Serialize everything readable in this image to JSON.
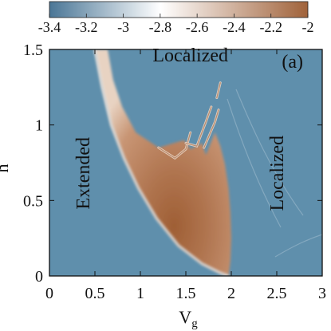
{
  "chart_data": {
    "type": "heatmap",
    "panel_label": "(a)",
    "xlabel": "V",
    "xlabel_subscript": "g",
    "ylabel": "h",
    "xlim": [
      0,
      3
    ],
    "ylim": [
      0,
      1.5
    ],
    "x_ticks": [
      {
        "value": 0,
        "label": "0"
      },
      {
        "value": 0.5,
        "label": "0.5"
      },
      {
        "value": 1,
        "label": "1"
      },
      {
        "value": 1.5,
        "label": "1.5"
      },
      {
        "value": 2,
        "label": "2"
      },
      {
        "value": 2.5,
        "label": "2.5"
      },
      {
        "value": 3,
        "label": "3"
      }
    ],
    "y_ticks": [
      {
        "value": 0,
        "label": "0"
      },
      {
        "value": 0.5,
        "label": "0.5"
      },
      {
        "value": 1,
        "label": "1"
      },
      {
        "value": 1.5,
        "label": "1.5"
      }
    ],
    "colorbar": {
      "range": [
        -3.4,
        -2
      ],
      "ticks": [
        {
          "value": -3.4,
          "label": "-3.4"
        },
        {
          "value": -3.2,
          "label": "-3.2"
        },
        {
          "value": -3,
          "label": "-3"
        },
        {
          "value": -2.8,
          "label": "-2.8"
        },
        {
          "value": -2.6,
          "label": "-2.6"
        },
        {
          "value": -2.4,
          "label": "-2.4"
        },
        {
          "value": -2.2,
          "label": "-2.2"
        },
        {
          "value": -2,
          "label": "-2"
        }
      ],
      "colors": {
        "low": "#4a7696",
        "mid": "#ffffff",
        "high": "#a0623a"
      }
    },
    "annotations": [
      {
        "id": "localized-top",
        "text": "Localized",
        "x": 1.55,
        "y": 1.42,
        "rotate": 0
      },
      {
        "id": "extended",
        "text": "Extended",
        "x": 0.44,
        "y": 0.68,
        "rotate": -90
      },
      {
        "id": "localized-right",
        "text": "Localized",
        "x": 2.57,
        "y": 0.68,
        "rotate": -90
      }
    ],
    "regions": {
      "extended_boundary_left": [
        [
          0.5,
          1.5
        ],
        [
          0.58,
          1.25
        ],
        [
          0.68,
          1.0
        ],
        [
          0.82,
          0.78
        ],
        [
          0.98,
          0.58
        ],
        [
          1.18,
          0.38
        ],
        [
          1.42,
          0.2
        ],
        [
          1.68,
          0.08
        ],
        [
          1.88,
          0.02
        ],
        [
          1.97,
          0.0
        ]
      ],
      "localized_boundary_right": [
        [
          1.97,
          0.0
        ],
        [
          1.99,
          0.1
        ],
        [
          2.0,
          0.25
        ],
        [
          1.99,
          0.42
        ],
        [
          1.97,
          0.58
        ],
        [
          1.93,
          0.74
        ],
        [
          1.88,
          0.86
        ],
        [
          1.82,
          0.95
        ],
        [
          1.72,
          0.8
        ],
        [
          1.68,
          0.88
        ],
        [
          1.55,
          0.84
        ],
        [
          1.48,
          0.9
        ],
        [
          1.2,
          0.85
        ],
        [
          0.95,
          0.95
        ],
        [
          0.8,
          1.12
        ],
        [
          0.7,
          1.3
        ],
        [
          0.64,
          1.5
        ]
      ],
      "critical_arms": [
        [
          [
            1.2,
            0.85
          ],
          [
            1.38,
            0.78
          ],
          [
            1.5,
            0.84
          ],
          [
            1.55,
            0.95
          ]
        ],
        [
          [
            1.5,
            0.88
          ],
          [
            1.62,
            0.86
          ],
          [
            1.72,
            1.02
          ],
          [
            1.78,
            1.12
          ]
        ],
        [
          [
            1.7,
            0.85
          ],
          [
            1.82,
            1.02
          ],
          [
            1.86,
            1.1
          ]
        ],
        [
          [
            1.84,
            1.18
          ],
          [
            1.88,
            1.28
          ]
        ]
      ]
    },
    "values": [
      {
        "region": "extended",
        "value": -3.1
      },
      {
        "region": "localized",
        "value": -3.1
      },
      {
        "region": "critical",
        "value_range": [
          -2.8,
          -2.0
        ]
      }
    ]
  }
}
